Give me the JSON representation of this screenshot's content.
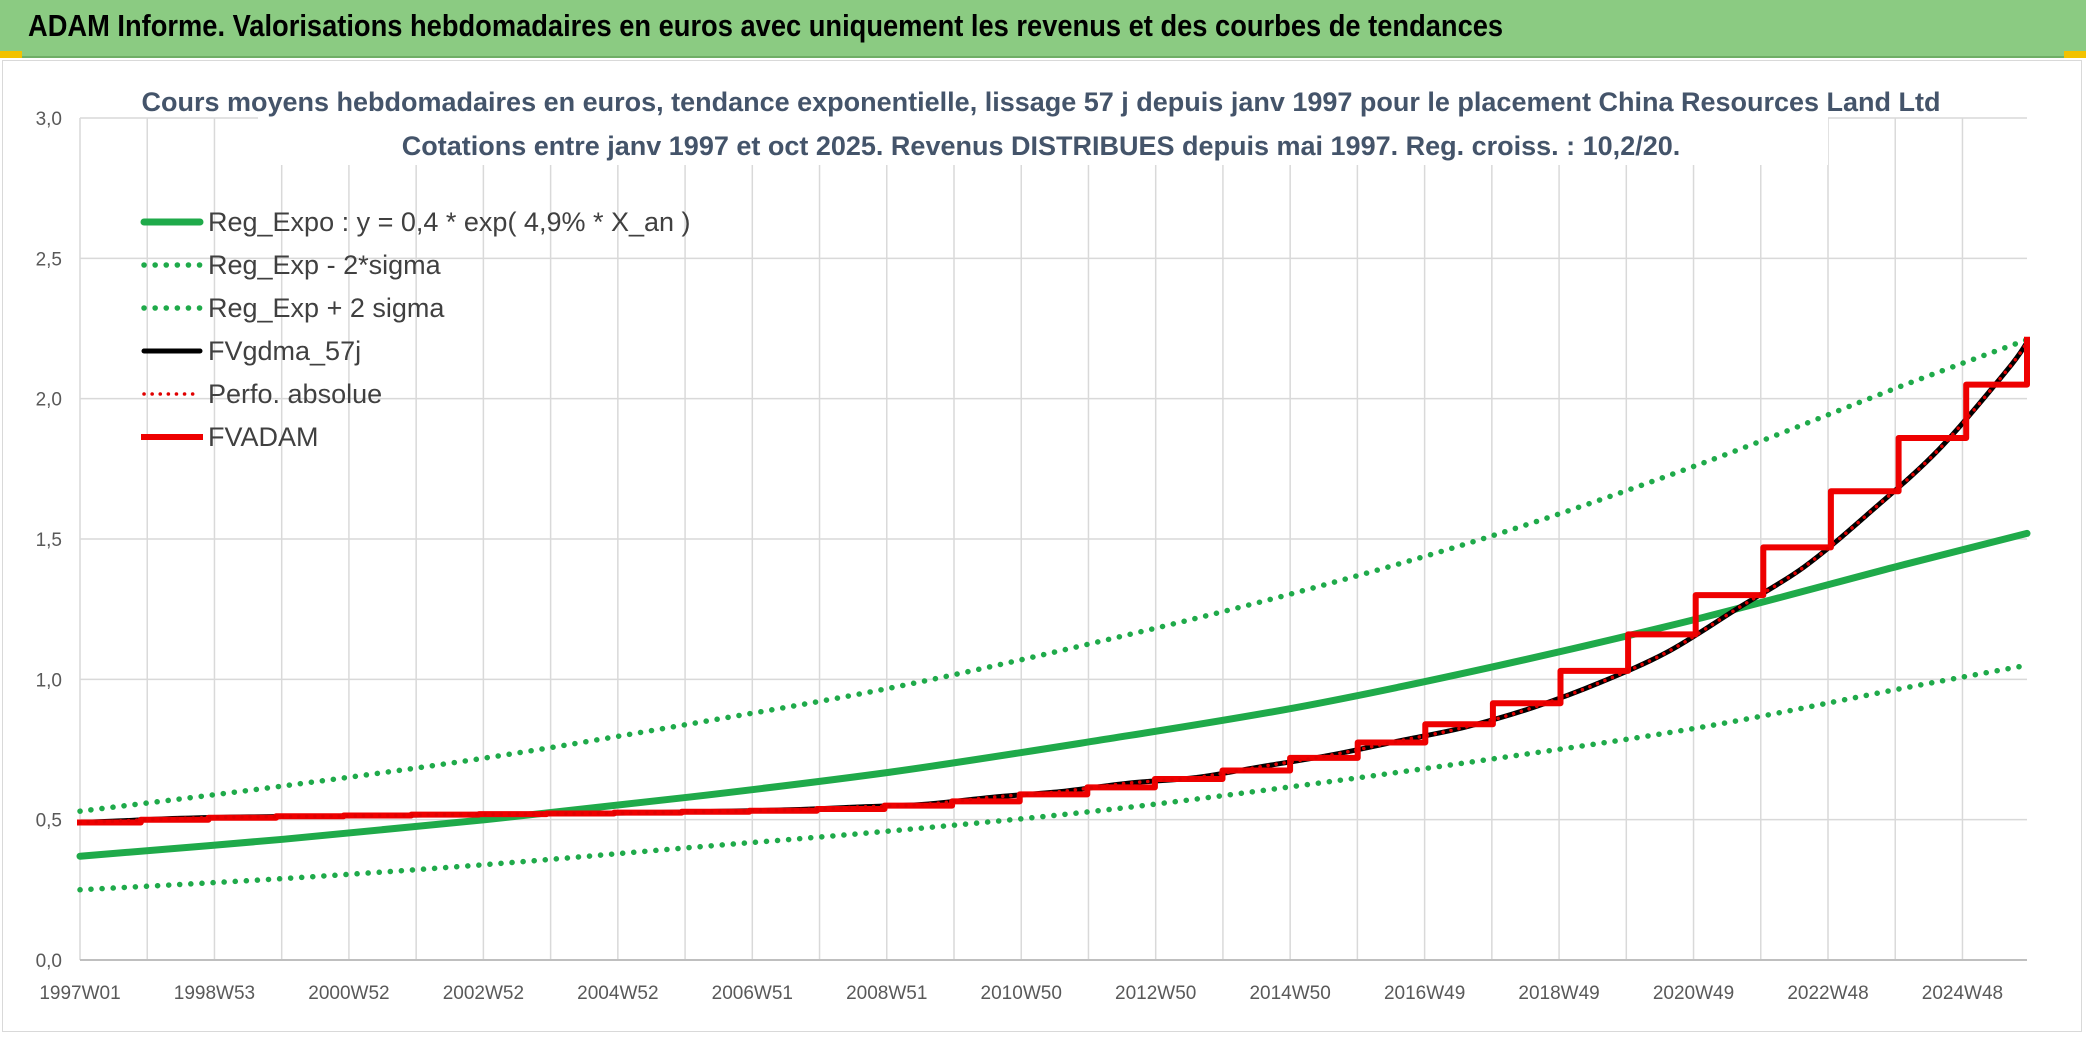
{
  "banner": {
    "title": "ADAM Informe. Valorisations hebdomadaires en euros avec uniquement les revenus et des courbes de tendances"
  },
  "colors": {
    "banner_bg": "#8bcb82",
    "trend_green": "#1faa4a",
    "fv_black": "#000000",
    "perfo_red": "#e00000",
    "fvadam_red": "#ee0000",
    "grid": "#d9d9d9"
  },
  "chart_data": {
    "type": "line",
    "title": "Cours moyens hebdomadaires en euros, tendance exponentielle, lissage 57 j depuis janv 1997 pour le placement China Resources Land Ltd",
    "subtitle": "Cotations entre janv 1997 et oct 2025. Revenus DISTRIBUES depuis mai 1997. Reg. croiss. : 10,2/20.",
    "x_ticks": [
      "1997W01",
      "1998W53",
      "2000W52",
      "2002W52",
      "2004W52",
      "2006W51",
      "2008W51",
      "2010W50",
      "2012W50",
      "2014W50",
      "2016W49",
      "2018W49",
      "2020W49",
      "2022W48",
      "2024W48"
    ],
    "x_range": [
      1997.0,
      2025.8
    ],
    "ylim": [
      0,
      3
    ],
    "y_ticks": [
      "0,0",
      "0,5",
      "1,0",
      "1,5",
      "2,0",
      "2,5",
      "3,0"
    ],
    "grid": true,
    "legend_position": "top-left",
    "series": [
      {
        "name": "Reg_Expo : y = 0,4 * exp( 4,9% *  X_an )",
        "style": "solid",
        "x": [
          1997.0,
          2000.0,
          2003.0,
          2006.0,
          2009.0,
          2012.0,
          2015.0,
          2018.0,
          2021.0,
          2024.0,
          2025.8
        ],
        "y": [
          0.37,
          0.43,
          0.5,
          0.58,
          0.67,
          0.78,
          0.9,
          1.05,
          1.22,
          1.41,
          1.52
        ]
      },
      {
        "name": "Reg_Exp - 2*sigma",
        "style": "dotted",
        "x": [
          1997.0,
          2000.0,
          2003.0,
          2006.0,
          2009.0,
          2012.0,
          2015.0,
          2018.0,
          2021.0,
          2024.0,
          2025.8
        ],
        "y": [
          0.25,
          0.29,
          0.34,
          0.4,
          0.46,
          0.53,
          0.62,
          0.72,
          0.83,
          0.97,
          1.05
        ]
      },
      {
        "name": "Reg_Exp + 2 sigma",
        "style": "dotted",
        "x": [
          1997.0,
          2000.0,
          2003.0,
          2006.0,
          2009.0,
          2012.0,
          2015.0,
          2018.0,
          2021.0,
          2024.0,
          2025.8
        ],
        "y": [
          0.53,
          0.62,
          0.72,
          0.84,
          0.97,
          1.13,
          1.31,
          1.52,
          1.77,
          2.05,
          2.21
        ]
      },
      {
        "name": "FVgdma_57j",
        "style": "solid",
        "x": [
          1997.0,
          1997.5,
          1998.5,
          1999.5,
          2000.5,
          2001.5,
          2002.5,
          2003.5,
          2004.5,
          2005.5,
          2006.5,
          2007.5,
          2008.5,
          2009.5,
          2010.5,
          2011.5,
          2012.5,
          2013.5,
          2014.5,
          2015.5,
          2016.5,
          2017.5,
          2018.5,
          2019.5,
          2020.5,
          2021.5,
          2022.5,
          2023.5,
          2024.5,
          2025.5,
          2025.8
        ],
        "y": [
          0.49,
          0.495,
          0.505,
          0.51,
          0.512,
          0.515,
          0.518,
          0.52,
          0.522,
          0.525,
          0.53,
          0.535,
          0.545,
          0.555,
          0.58,
          0.6,
          0.63,
          0.65,
          0.69,
          0.73,
          0.78,
          0.83,
          0.9,
          0.99,
          1.1,
          1.25,
          1.4,
          1.6,
          1.82,
          2.1,
          2.2
        ]
      },
      {
        "name": "Perfo. absolue",
        "style": "dotted",
        "x": [
          1997.0,
          1997.5,
          1998.5,
          1999.5,
          2000.5,
          2001.5,
          2002.5,
          2003.5,
          2004.5,
          2005.5,
          2006.5,
          2007.5,
          2008.5,
          2009.5,
          2010.5,
          2011.5,
          2012.5,
          2013.5,
          2014.5,
          2015.5,
          2016.5,
          2017.5,
          2018.5,
          2019.5,
          2020.5,
          2021.5,
          2022.5,
          2023.5,
          2024.5,
          2025.5,
          2025.8
        ],
        "y": [
          0.49,
          0.495,
          0.505,
          0.51,
          0.512,
          0.515,
          0.518,
          0.52,
          0.522,
          0.525,
          0.53,
          0.535,
          0.545,
          0.555,
          0.58,
          0.6,
          0.63,
          0.65,
          0.69,
          0.73,
          0.78,
          0.83,
          0.9,
          0.99,
          1.1,
          1.25,
          1.4,
          1.6,
          1.82,
          2.1,
          2.2
        ]
      },
      {
        "name": "FVADAM",
        "style": "step",
        "x": [
          1997.0,
          1997.9,
          1998.9,
          1999.9,
          2000.9,
          2001.9,
          2002.9,
          2003.9,
          2004.9,
          2005.9,
          2006.9,
          2007.9,
          2008.9,
          2009.9,
          2010.9,
          2011.9,
          2012.9,
          2013.9,
          2014.9,
          2015.9,
          2016.9,
          2017.9,
          2018.9,
          2019.9,
          2020.9,
          2021.9,
          2022.9,
          2023.9,
          2024.9,
          2025.8
        ],
        "y": [
          0.49,
          0.5,
          0.507,
          0.512,
          0.515,
          0.518,
          0.52,
          0.522,
          0.525,
          0.528,
          0.532,
          0.538,
          0.55,
          0.565,
          0.59,
          0.615,
          0.645,
          0.675,
          0.72,
          0.775,
          0.84,
          0.915,
          1.03,
          1.16,
          1.3,
          1.47,
          1.67,
          1.86,
          2.05,
          2.21
        ]
      }
    ]
  }
}
